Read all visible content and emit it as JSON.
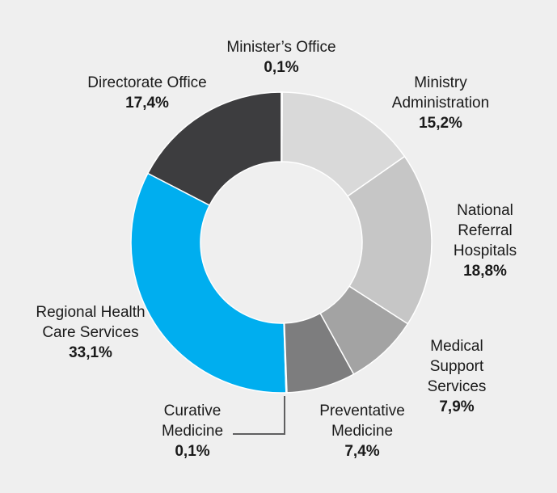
{
  "chart_data": {
    "type": "donut",
    "categories": [
      "Minister’s Office",
      "Ministry Administration",
      "National Referral Hospitals",
      "Medical Support Services",
      "Preventative Medicine",
      "Curative Medicine",
      "Regional Health Care Services",
      "Directorate Office"
    ],
    "values": [
      0.1,
      15.2,
      18.8,
      7.9,
      7.4,
      0.1,
      33.1,
      17.4
    ],
    "value_labels": [
      "0,1%",
      "15,2%",
      "18,8%",
      "7,9%",
      "7,4%",
      "0,1%",
      "33,1%",
      "17,4%"
    ],
    "colors": [
      "#e6e6e6",
      "#d9d9d9",
      "#c6c6c6",
      "#a3a3a3",
      "#7d7d7e",
      "#5f5f60",
      "#00aeef",
      "#3d3d3f"
    ]
  }
}
